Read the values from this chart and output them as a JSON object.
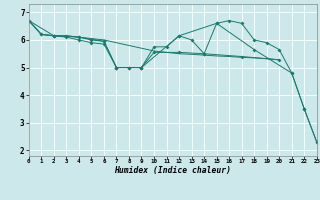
{
  "xlabel": "Humidex (Indice chaleur)",
  "bg_color": "#cce8ea",
  "line_color": "#1a7a6e",
  "grid_color": "#ffffff",
  "xlim": [
    0,
    23
  ],
  "ylim": [
    1.8,
    7.3
  ],
  "yticks": [
    2,
    3,
    4,
    5,
    6,
    7
  ],
  "xticks": [
    0,
    1,
    2,
    3,
    4,
    5,
    6,
    7,
    8,
    9,
    10,
    11,
    12,
    13,
    14,
    15,
    16,
    17,
    18,
    19,
    20,
    21,
    22,
    23
  ],
  "series": [
    {
      "x": [
        0,
        1,
        2,
        3,
        4,
        5,
        6,
        7,
        8,
        9,
        10,
        11,
        12,
        13,
        14,
        15,
        16,
        17,
        18,
        19,
        20
      ],
      "y": [
        6.7,
        6.2,
        6.15,
        6.15,
        6.1,
        6.05,
        6.0,
        5.9,
        5.8,
        5.7,
        5.6,
        5.55,
        5.5,
        5.48,
        5.45,
        5.42,
        5.4,
        5.37,
        5.35,
        5.32,
        5.28
      ],
      "marker": false
    },
    {
      "x": [
        0,
        1,
        2,
        3,
        4,
        5,
        6,
        7,
        8,
        9,
        10,
        11,
        12,
        13,
        14,
        15,
        16,
        17,
        18,
        19,
        20,
        21,
        22,
        23
      ],
      "y": [
        6.7,
        6.2,
        6.15,
        6.15,
        6.1,
        6.0,
        5.95,
        5.0,
        5.0,
        5.0,
        5.75,
        5.75,
        6.15,
        6.0,
        5.5,
        6.6,
        6.7,
        6.6,
        6.0,
        5.9,
        5.65,
        4.8,
        3.5,
        2.3
      ],
      "marker": true
    },
    {
      "x": [
        0,
        1,
        2,
        3,
        4,
        5,
        6,
        7,
        8,
        9,
        10,
        12,
        14,
        17,
        20
      ],
      "y": [
        6.7,
        6.2,
        6.15,
        6.1,
        6.0,
        5.9,
        5.85,
        5.0,
        5.0,
        5.0,
        5.55,
        5.55,
        5.5,
        5.4,
        5.28
      ],
      "marker": true
    },
    {
      "x": [
        0,
        2,
        4,
        6,
        7,
        9,
        12,
        15,
        18,
        21,
        22,
        23
      ],
      "y": [
        6.7,
        6.15,
        6.1,
        5.95,
        5.0,
        5.0,
        6.15,
        6.6,
        5.65,
        4.8,
        3.5,
        2.3
      ],
      "marker": true
    }
  ]
}
